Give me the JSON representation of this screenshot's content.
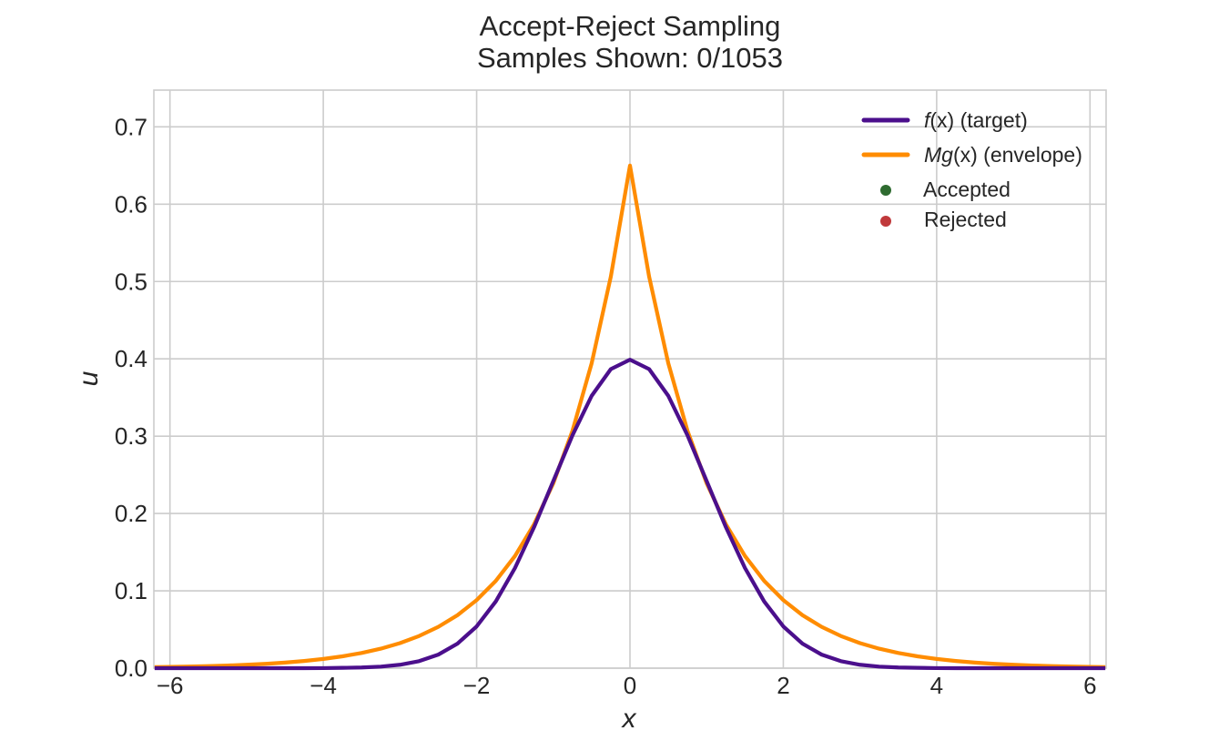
{
  "chart_data": {
    "type": "line",
    "title": "Accept-Reject Sampling",
    "subtitle": "Samples Shown: 0/1053",
    "xlabel": "x",
    "ylabel": "u",
    "xlim": [
      -6.21,
      6.21
    ],
    "ylim": [
      0,
      0.7475
    ],
    "grid": true,
    "legend_placement": "top-right",
    "x_ticks": [
      -6,
      -4,
      -2,
      0,
      2,
      4,
      6
    ],
    "x_tick_labels": [
      "−6",
      "−4",
      "−2",
      "0",
      "2",
      "4",
      "6"
    ],
    "y_ticks": [
      0.0,
      0.1,
      0.2,
      0.3,
      0.4,
      0.5,
      0.6,
      0.7
    ],
    "y_tick_labels": [
      "0.0",
      "0.1",
      "0.2",
      "0.3",
      "0.4",
      "0.5",
      "0.6",
      "0.7"
    ],
    "x": [
      -6.2,
      -6,
      -5.75,
      -5.5,
      -5.25,
      -5,
      -4.75,
      -4.5,
      -4.25,
      -4,
      -3.75,
      -3.5,
      -3.25,
      -3,
      -2.75,
      -2.5,
      -2.25,
      -2,
      -1.75,
      -1.5,
      -1.25,
      -1,
      -0.75,
      -0.5,
      -0.25,
      0,
      0.25,
      0.5,
      0.75,
      1,
      1.25,
      1.5,
      1.75,
      2,
      2.25,
      2.5,
      2.75,
      3,
      3.25,
      3.5,
      3.75,
      4,
      4.25,
      4.5,
      4.75,
      5,
      5.25,
      5.5,
      5.75,
      6,
      6.2
    ],
    "series": [
      {
        "name": "f(x) (target)",
        "color": "#4b0f8c",
        "values": [
          0,
          0,
          0,
          0,
          0,
          0,
          0,
          0,
          0,
          0.0001,
          0.0004,
          0.0009,
          0.002,
          0.0044,
          0.0091,
          0.0175,
          0.0317,
          0.054,
          0.0863,
          0.1295,
          0.1826,
          0.242,
          0.3011,
          0.3521,
          0.3867,
          0.3989,
          0.3867,
          0.3521,
          0.3011,
          0.242,
          0.1826,
          0.1295,
          0.0863,
          0.054,
          0.0317,
          0.0175,
          0.0091,
          0.0044,
          0.002,
          0.0009,
          0.0004,
          0.0001,
          0,
          0,
          0,
          0,
          0,
          0,
          0,
          0,
          0
        ]
      },
      {
        "name": "Mg(x) (envelope)",
        "color": "#ff8c00",
        "values": [
          0.0013,
          0.0016,
          0.0021,
          0.0027,
          0.0034,
          0.0044,
          0.0056,
          0.0072,
          0.0093,
          0.0119,
          0.0153,
          0.0196,
          0.0252,
          0.0324,
          0.0416,
          0.0534,
          0.0685,
          0.088,
          0.1129,
          0.145,
          0.1862,
          0.2391,
          0.307,
          0.3942,
          0.5062,
          0.65,
          0.5062,
          0.3942,
          0.307,
          0.2391,
          0.1862,
          0.145,
          0.1129,
          0.088,
          0.0685,
          0.0534,
          0.0416,
          0.0324,
          0.0252,
          0.0196,
          0.0153,
          0.0119,
          0.0093,
          0.0072,
          0.0056,
          0.0044,
          0.0034,
          0.0027,
          0.0021,
          0.0016,
          0.0013
        ]
      },
      {
        "name": "Accepted",
        "color": "#2e6b30",
        "points": []
      },
      {
        "name": "Rejected",
        "color": "#c0393b",
        "points": []
      }
    ],
    "legend": {
      "target_fn": "f",
      "target_arg": "(x)",
      "target_note": " (target)",
      "envelope_fn": "Mg",
      "envelope_arg": "(x)",
      "envelope_note": " (envelope)",
      "accepted": "Accepted",
      "rejected": "Rejected"
    }
  }
}
